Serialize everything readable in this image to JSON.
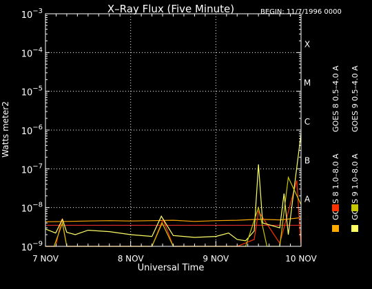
{
  "chart_data": {
    "type": "line",
    "title": "X–Ray Flux (Five Minute)",
    "begin_label": "BEGIN: 11/7/1996 0000",
    "xlabel": "Universal Time",
    "ylabel": "Watts meter2",
    "x_ticks": [
      {
        "x": 0,
        "label": "7 NOV"
      },
      {
        "x": 1,
        "label": "8 NOV"
      },
      {
        "x": 2,
        "label": "9 NOV"
      },
      {
        "x": 3,
        "label": "10 NOV"
      }
    ],
    "xlim": [
      0,
      3
    ],
    "yscale": "log",
    "ylim": [
      1e-09,
      0.001
    ],
    "y_ticks": [
      {
        "exp": -9,
        "base": "10",
        "sup": "−9"
      },
      {
        "exp": -8,
        "base": "10",
        "sup": "−8"
      },
      {
        "exp": -7,
        "base": "10",
        "sup": "−7"
      },
      {
        "exp": -6,
        "base": "10",
        "sup": "−6"
      },
      {
        "exp": -5,
        "base": "10",
        "sup": "−5"
      },
      {
        "exp": -4,
        "base": "10",
        "sup": "−4"
      },
      {
        "exp": -3,
        "base": "10",
        "sup": "−3"
      }
    ],
    "flare_classes": [
      {
        "label": "A",
        "flux": 1e-08
      },
      {
        "label": "B",
        "flux": 1e-07
      },
      {
        "label": "C",
        "flux": 1e-06
      },
      {
        "label": "M",
        "flux": 1e-05
      },
      {
        "label": "X",
        "flux": 0.0001
      }
    ],
    "reference_line_flux": 3.5e-09,
    "series": [
      {
        "name": "GOES 8  1.0–8.0 A",
        "color": "#ffaa00",
        "x": [
          0.0,
          0.25,
          0.5,
          0.75,
          1.0,
          1.25,
          1.5,
          1.75,
          2.0,
          2.25,
          2.5,
          2.75,
          2.9,
          3.0
        ],
        "value": [
          4.3e-09,
          4.4e-09,
          4.5e-09,
          4.6e-09,
          4.5e-09,
          4.6e-09,
          4.7e-09,
          4.4e-09,
          4.6e-09,
          4.7e-09,
          5e-09,
          4.8e-09,
          5.2e-09,
          5.5e-09
        ]
      },
      {
        "name": "GOES 8  0.5–4.0 A",
        "color": "#ff3300",
        "x": [
          0.0,
          0.12,
          0.19,
          0.25,
          0.35,
          0.55,
          0.75,
          1.0,
          1.25,
          1.38,
          1.5,
          1.75,
          2.0,
          2.25,
          2.45,
          2.5,
          2.75,
          2.95,
          3.0
        ],
        "value": [
          1e-09,
          1e-09,
          5e-09,
          1e-09,
          1e-09,
          1e-09,
          1e-09,
          1e-09,
          1e-09,
          5e-09,
          1e-09,
          1e-09,
          1e-09,
          1e-09,
          1.5e-09,
          8e-09,
          1.2e-09,
          5e-08,
          1e-09
        ]
      },
      {
        "name": "GOES 9  1.0–8.0 A",
        "color": "#ffff66",
        "x": [
          0.0,
          0.12,
          0.2,
          0.25,
          0.35,
          0.5,
          0.75,
          1.0,
          1.25,
          1.36,
          1.5,
          1.75,
          2.0,
          2.15,
          2.25,
          2.35,
          2.45,
          2.5,
          2.55,
          2.75,
          2.8,
          2.85,
          3.0
        ],
        "value": [
          2.8e-09,
          2.2e-09,
          5e-09,
          2.3e-09,
          2e-09,
          2.6e-09,
          2.4e-09,
          2e-09,
          1.8e-09,
          6e-09,
          1.9e-09,
          1.7e-09,
          1.8e-09,
          2.2e-09,
          1.5e-09,
          1.4e-09,
          2.5e-09,
          1.3e-07,
          4e-09,
          3e-09,
          2.3e-08,
          2e-09,
          8e-07
        ]
      },
      {
        "name": "GOES 9  0.5–4.0 A",
        "color": "#c8c800",
        "x": [
          0.0,
          0.1,
          0.2,
          0.25,
          0.5,
          0.75,
          1.0,
          1.25,
          1.37,
          1.5,
          1.75,
          2.0,
          2.25,
          2.35,
          2.5,
          2.6,
          2.75,
          2.85,
          3.0
        ],
        "value": [
          1e-09,
          1e-09,
          4e-09,
          1e-09,
          1e-09,
          1e-09,
          1e-09,
          1e-09,
          4e-09,
          1e-09,
          1e-09,
          1e-09,
          1e-09,
          1e-09,
          1e-08,
          1e-09,
          1e-09,
          6e-08,
          1.2e-08
        ]
      }
    ],
    "colors": {
      "background": "#000000",
      "axes": "#ffffff",
      "reference_line": "#ff3333"
    }
  }
}
